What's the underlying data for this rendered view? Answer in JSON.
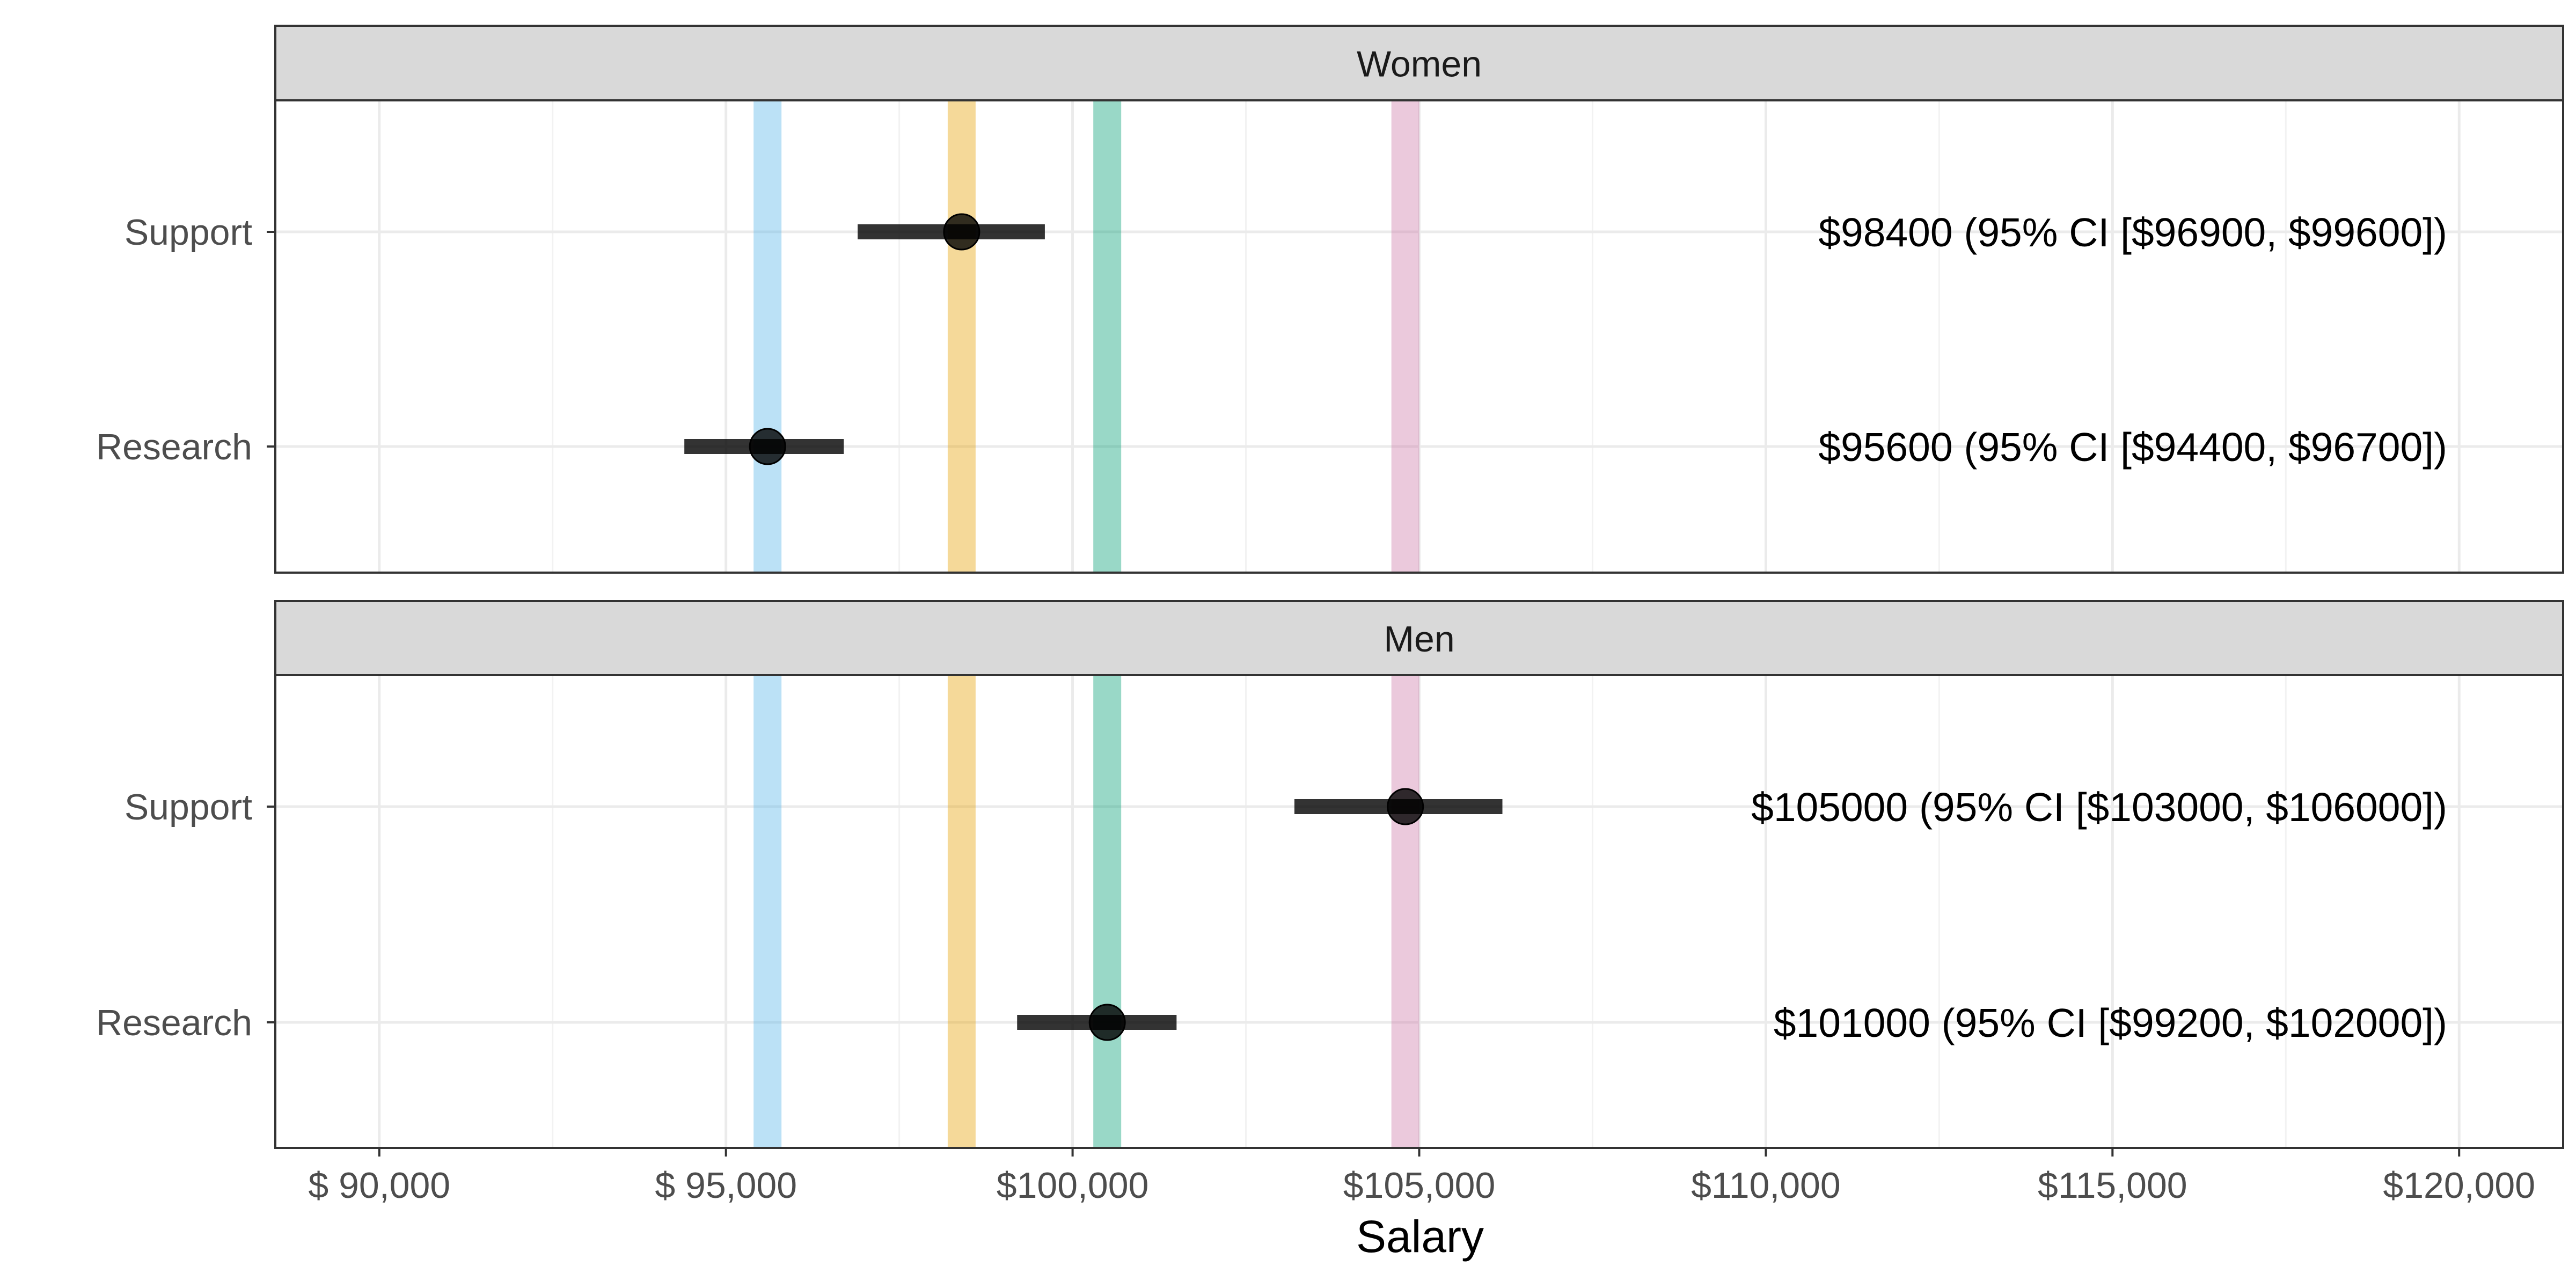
{
  "chart_data": {
    "type": "dot-interval",
    "xlabel": "Salary",
    "xlim": [
      88500,
      121500
    ],
    "x_ticks": [
      90000,
      95000,
      100000,
      105000,
      110000,
      115000,
      120000
    ],
    "x_tick_labels": [
      "$ 90,000",
      "$ 95,000",
      "$100,000",
      "$105,000",
      "$110,000",
      "$115,000",
      "$120,000"
    ],
    "grid": true,
    "reference_lines": [
      {
        "value": 95600,
        "color": "#56B4E9"
      },
      {
        "value": 98400,
        "color": "#E69F00"
      },
      {
        "value": 100500,
        "color": "#009E73"
      },
      {
        "value": 104800,
        "color": "#CC79A7"
      }
    ],
    "panels": [
      {
        "title": "Women",
        "rows": [
          {
            "label": "Support",
            "estimate": 98400,
            "ci_low": 96900,
            "ci_high": 99600,
            "annotation": "$98400 (95% CI [$96900, $99600])"
          },
          {
            "label": "Research",
            "estimate": 95600,
            "ci_low": 94400,
            "ci_high": 96700,
            "annotation": "$95600 (95% CI [$94400, $96700])"
          }
        ]
      },
      {
        "title": "Men",
        "rows": [
          {
            "label": "Support",
            "estimate": 104800,
            "ci_low": 103200,
            "ci_high": 106200,
            "annotation": "$105000 (95% CI [$103000, $106000])"
          },
          {
            "label": "Research",
            "estimate": 100500,
            "ci_low": 99200,
            "ci_high": 101500,
            "annotation": "$101000 (95% CI [$99200, $102000])"
          }
        ]
      }
    ]
  }
}
